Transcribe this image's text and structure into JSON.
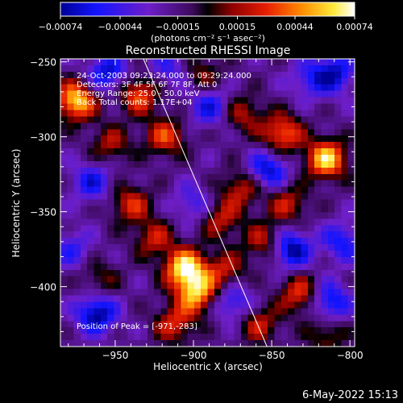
{
  "chart_data": {
    "type": "heatmap",
    "title": "Reconstructed RHESSI Image",
    "xlabel": "Heliocentric X (arcsec)",
    "ylabel": "Heliocentric Y (arcsec)",
    "xlim": [
      -985,
      -797
    ],
    "ylim": [
      -440,
      -248
    ],
    "x_ticks": [
      -950,
      -900,
      -850,
      -800
    ],
    "y_ticks": [
      -250,
      -300,
      -350,
      -400
    ],
    "x_tick_labels": [
      "−950",
      "−900",
      "−850",
      "−800"
    ],
    "y_tick_labels": [
      "−250",
      "−300",
      "−350",
      "−400"
    ],
    "colorbar": {
      "range": [
        -0.00074,
        0.00074
      ],
      "ticks": [
        -0.00074,
        -0.00044,
        -0.00015,
        0.00015,
        0.00044,
        0.00074
      ],
      "tick_labels": [
        "−0.00074",
        "−0.00044",
        "−0.00015",
        "0.00015",
        "0.00044",
        "0.00074"
      ],
      "units_label": "(photons cm⁻² s⁻¹ asec⁻²)"
    },
    "annotations": [
      "24-Oct-2003 09:23:24.000 to 09:29:24.000",
      "Detectors: 3F 4F 5F 6F 7F 8F, Att 0",
      "Energy Range: 25.0 - 50.0 keV",
      "Back       Total counts: 1.17E+04"
    ],
    "peak_label": "Position of Peak = [-971,-283]",
    "limb_line": [
      [
        -932,
        -248
      ],
      [
        -853,
        -440
      ]
    ],
    "sources": [
      {
        "x": -975,
        "y": -276,
        "value": 0.0008
      },
      {
        "x": -953,
        "y": -305,
        "value": 0.00035
      },
      {
        "x": -935,
        "y": -272,
        "value": 0.00055
      },
      {
        "x": -918,
        "y": -300,
        "value": 0.0005
      },
      {
        "x": -940,
        "y": -345,
        "value": 0.00045
      },
      {
        "x": -925,
        "y": -368,
        "value": 0.0004
      },
      {
        "x": -905,
        "y": -388,
        "value": 0.0009
      },
      {
        "x": -898,
        "y": -405,
        "value": 0.0007
      },
      {
        "x": -912,
        "y": -425,
        "value": 0.00045
      },
      {
        "x": -883,
        "y": -355,
        "value": 0.0004
      },
      {
        "x": -870,
        "y": -335,
        "value": 0.0004
      },
      {
        "x": -868,
        "y": -285,
        "value": 0.00035
      },
      {
        "x": -843,
        "y": -298,
        "value": 0.0006
      },
      {
        "x": -815,
        "y": -315,
        "value": 0.0008
      },
      {
        "x": -840,
        "y": -345,
        "value": 0.0004
      },
      {
        "x": -855,
        "y": -370,
        "value": 0.0004
      },
      {
        "x": -880,
        "y": -390,
        "value": 0.0004
      },
      {
        "x": -832,
        "y": -405,
        "value": 0.0005
      },
      {
        "x": -858,
        "y": -425,
        "value": 0.0004
      },
      {
        "x": -815,
        "y": -432,
        "value": 0.0003
      },
      {
        "x": -960,
        "y": -395,
        "value": 0.00025
      },
      {
        "x": -895,
        "y": -258,
        "value": 0.0003
      },
      {
        "x": -978,
        "y": -375,
        "value": -0.0003
      },
      {
        "x": -955,
        "y": -258,
        "value": -0.0005
      },
      {
        "x": -890,
        "y": -280,
        "value": -0.0004
      },
      {
        "x": -915,
        "y": -255,
        "value": -0.0003
      },
      {
        "x": -900,
        "y": -345,
        "value": -0.0003
      },
      {
        "x": -838,
        "y": -375,
        "value": -0.0006
      },
      {
        "x": -852,
        "y": -322,
        "value": -0.0005
      },
      {
        "x": -813,
        "y": -410,
        "value": -0.0005
      },
      {
        "x": -962,
        "y": -418,
        "value": -0.0006
      },
      {
        "x": -805,
        "y": -370,
        "value": -0.0004
      },
      {
        "x": -810,
        "y": -258,
        "value": -0.0005
      },
      {
        "x": -965,
        "y": -330,
        "value": -0.0004
      },
      {
        "x": -875,
        "y": -410,
        "value": -0.0004
      },
      {
        "x": -826,
        "y": -262,
        "value": -0.0003
      }
    ]
  },
  "footer": {
    "date": "6-May-2022 15:13"
  }
}
